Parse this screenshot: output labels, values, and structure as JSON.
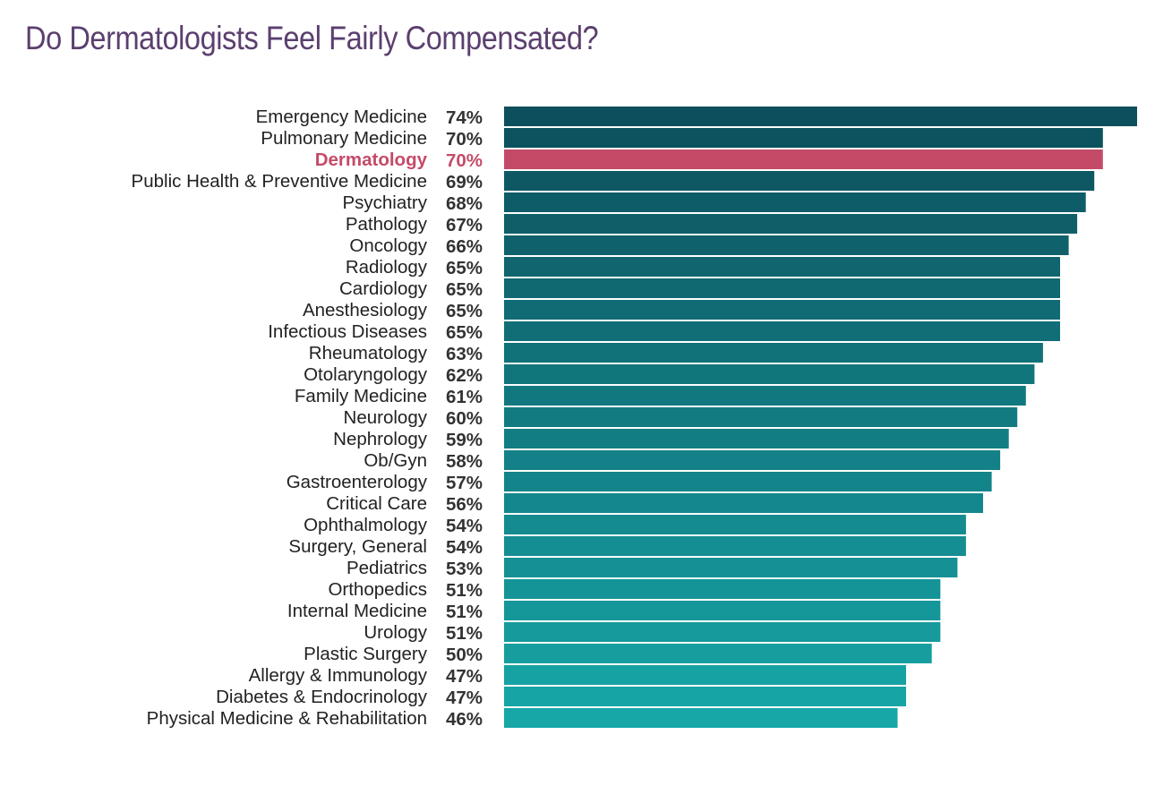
{
  "chart_data": {
    "type": "bar",
    "orientation": "horizontal",
    "title": "Do Dermatologists Feel Fairly Compensated?",
    "xlabel": "",
    "ylabel": "",
    "value_suffix": "%",
    "xlim": [
      0,
      74
    ],
    "grid": false,
    "legend": "none",
    "highlight": "Dermatology",
    "colors": {
      "title": "#5b3f6f",
      "highlight": "#c44b68",
      "bar_top": "#0d4f5c",
      "bar_bottom": "#17a7a7"
    },
    "categories": [
      "Emergency Medicine",
      "Pulmonary Medicine",
      "Dermatology",
      "Public Health & Preventive Medicine",
      "Psychiatry",
      "Pathology",
      "Oncology",
      "Radiology",
      "Cardiology",
      "Anesthesiology",
      "Infectious Diseases",
      "Rheumatology",
      "Otolaryngology",
      "Family Medicine",
      "Neurology",
      "Nephrology",
      "Ob/Gyn",
      "Gastroenterology",
      "Critical Care",
      "Ophthalmology",
      "Surgery, General",
      "Pediatrics",
      "Orthopedics",
      "Internal Medicine",
      "Urology",
      "Plastic Surgery",
      "Allergy & Immunology",
      "Diabetes & Endocrinology",
      "Physical Medicine & Rehabilitation"
    ],
    "values": [
      74,
      70,
      70,
      69,
      68,
      67,
      66,
      65,
      65,
      65,
      65,
      63,
      62,
      61,
      60,
      59,
      58,
      57,
      56,
      54,
      54,
      53,
      51,
      51,
      51,
      50,
      47,
      47,
      46
    ]
  }
}
